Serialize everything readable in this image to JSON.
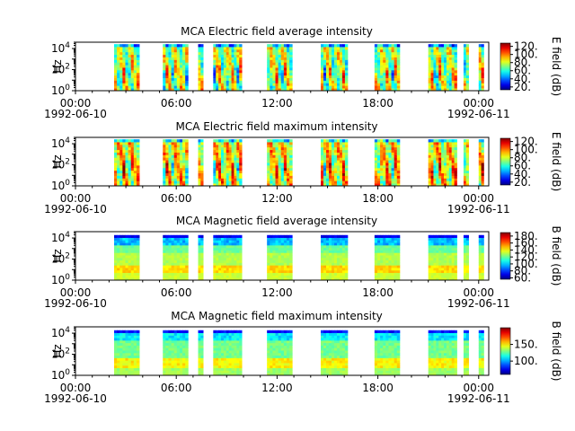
{
  "chart_data": [
    {
      "type": "heatmap",
      "title": "MCA  Electric field average intensity",
      "ylabel": "Hz",
      "yscale": "log",
      "ylim": [
        1,
        40000
      ],
      "y_ticks": [
        {
          "v": 1,
          "exp": "0"
        },
        {
          "v": 100,
          "exp": "2"
        },
        {
          "v": 10000,
          "exp": "4"
        }
      ],
      "xlim": [
        0,
        24.6
      ],
      "x_ticks": [
        {
          "h": 0,
          "time": "00:00",
          "date": "1992-06-10"
        },
        {
          "h": 6,
          "time": "06:00",
          "date": ""
        },
        {
          "h": 12,
          "time": "12:00",
          "date": ""
        },
        {
          "h": 18,
          "time": "18:00",
          "date": ""
        },
        {
          "h": 24,
          "time": "00:00",
          "date": "1992-06-11"
        }
      ],
      "colorbar": {
        "label": "E field (dB)",
        "range": [
          13,
          128
        ],
        "ticks": [
          20,
          40,
          60,
          80,
          100,
          120
        ],
        "labeled": [
          20,
          40,
          60,
          80,
          100,
          120
        ]
      },
      "segments": [
        [
          2.3,
          3.8
        ],
        [
          5.2,
          6.7
        ],
        [
          7.3,
          7.6
        ],
        [
          8.2,
          9.9
        ],
        [
          11.4,
          12.9
        ],
        [
          14.6,
          16.2
        ],
        [
          17.8,
          19.3
        ],
        [
          21.0,
          22.7
        ],
        [
          23.1,
          23.4
        ],
        [
          24.0,
          24.3
        ]
      ],
      "kind": "E"
    },
    {
      "type": "heatmap",
      "title": "MCA  Electric field maximum intensity",
      "ylabel": "Hz",
      "yscale": "log",
      "ylim": [
        1,
        40000
      ],
      "y_ticks": [
        {
          "v": 1,
          "exp": "0"
        },
        {
          "v": 100,
          "exp": "2"
        },
        {
          "v": 10000,
          "exp": "4"
        }
      ],
      "xlim": [
        0,
        24.6
      ],
      "x_ticks": [
        {
          "h": 0,
          "time": "00:00",
          "date": "1992-06-10"
        },
        {
          "h": 6,
          "time": "06:00",
          "date": ""
        },
        {
          "h": 12,
          "time": "12:00",
          "date": ""
        },
        {
          "h": 18,
          "time": "18:00",
          "date": ""
        },
        {
          "h": 24,
          "time": "00:00",
          "date": "1992-06-11"
        }
      ],
      "colorbar": {
        "label": "E field (dB)",
        "range": [
          13,
          128
        ],
        "ticks": [
          20,
          40,
          60,
          80,
          100,
          120
        ],
        "labeled": [
          20,
          40,
          60,
          80,
          100,
          120
        ]
      },
      "segments": [
        [
          2.3,
          3.8
        ],
        [
          5.2,
          6.7
        ],
        [
          7.3,
          7.6
        ],
        [
          8.2,
          9.9
        ],
        [
          11.4,
          12.9
        ],
        [
          14.6,
          16.2
        ],
        [
          17.8,
          19.3
        ],
        [
          21.0,
          22.7
        ],
        [
          23.1,
          23.4
        ],
        [
          24.0,
          24.3
        ]
      ],
      "kind": "E"
    },
    {
      "type": "heatmap",
      "title": "MCA  Magnetic field average intensity",
      "ylabel": "Hz",
      "yscale": "log",
      "ylim": [
        1,
        40000
      ],
      "y_ticks": [
        {
          "v": 1,
          "exp": "0"
        },
        {
          "v": 100,
          "exp": "2"
        },
        {
          "v": 10000,
          "exp": "4"
        }
      ],
      "xlim": [
        0,
        24.6
      ],
      "x_ticks": [
        {
          "h": 0,
          "time": "00:00",
          "date": "1992-06-10"
        },
        {
          "h": 6,
          "time": "06:00",
          "date": ""
        },
        {
          "h": 12,
          "time": "12:00",
          "date": ""
        },
        {
          "h": 18,
          "time": "18:00",
          "date": ""
        },
        {
          "h": 24,
          "time": "00:00",
          "date": "1992-06-11"
        }
      ],
      "colorbar": {
        "label": "B field (dB)",
        "range": [
          56,
          190
        ],
        "ticks": [
          60,
          80,
          100,
          120,
          140,
          160,
          180
        ],
        "labeled": [
          60,
          80,
          100,
          120,
          140,
          160,
          180
        ]
      },
      "segments": [
        [
          2.3,
          3.8
        ],
        [
          5.2,
          6.7
        ],
        [
          7.3,
          7.6
        ],
        [
          8.2,
          9.9
        ],
        [
          11.4,
          12.9
        ],
        [
          14.6,
          16.2
        ],
        [
          17.8,
          19.3
        ],
        [
          21.0,
          22.7
        ],
        [
          23.1,
          23.4
        ],
        [
          24.0,
          24.3
        ]
      ],
      "kind": "B"
    },
    {
      "type": "heatmap",
      "title": "MCA  Magnetic field maximum intensity",
      "ylabel": "Hz",
      "yscale": "log",
      "ylim": [
        1,
        40000
      ],
      "y_ticks": [
        {
          "v": 1,
          "exp": "0"
        },
        {
          "v": 100,
          "exp": "2"
        },
        {
          "v": 10000,
          "exp": "4"
        }
      ],
      "xlim": [
        0,
        24.6
      ],
      "x_ticks": [
        {
          "h": 0,
          "time": "00:00",
          "date": "1992-06-10"
        },
        {
          "h": 6,
          "time": "06:00",
          "date": ""
        },
        {
          "h": 12,
          "time": "12:00",
          "date": ""
        },
        {
          "h": 18,
          "time": "18:00",
          "date": ""
        },
        {
          "h": 24,
          "time": "00:00",
          "date": "1992-06-11"
        }
      ],
      "colorbar": {
        "label": "B field (dB)",
        "range": [
          60,
          200
        ],
        "ticks": [
          100,
          150
        ],
        "labeled": [
          100,
          150
        ]
      },
      "segments": [
        [
          2.3,
          3.8
        ],
        [
          5.2,
          6.7
        ],
        [
          7.3,
          7.6
        ],
        [
          8.2,
          9.9
        ],
        [
          11.4,
          12.9
        ],
        [
          14.6,
          16.2
        ],
        [
          17.8,
          19.3
        ],
        [
          21.0,
          22.7
        ],
        [
          23.1,
          23.4
        ],
        [
          24.0,
          24.3
        ]
      ],
      "kind": "Bmax"
    }
  ]
}
